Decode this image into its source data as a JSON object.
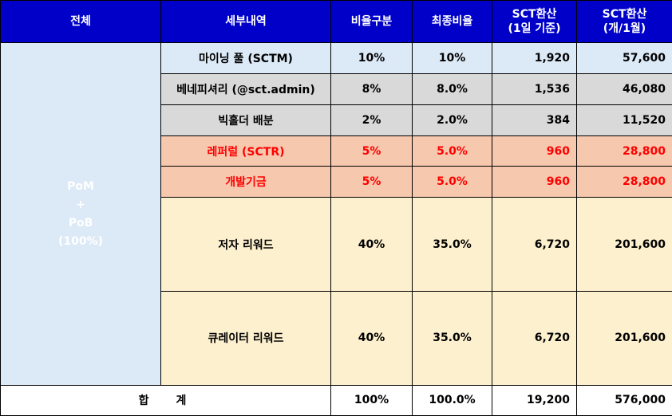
{
  "headers": {
    "total": "전체",
    "detail": "세부내역",
    "ratio": "비율구분",
    "final_ratio": "최종비율",
    "sct_day_1": "SCT환산",
    "sct_day_2": "(1일 기준)",
    "sct_month_1": "SCT환산",
    "sct_month_2": "(개/1월)"
  },
  "group": {
    "line1": "PoM",
    "line2": "+",
    "line3": "PoB",
    "line4": "(100%)"
  },
  "rows": [
    {
      "detail": "마이닝 풀 (SCTM)",
      "ratio": "10%",
      "final": "10%",
      "day": "1,920",
      "month": "57,600"
    },
    {
      "detail": "베네피셔리 (@sct.admin)",
      "ratio": "8%",
      "final": "8.0%",
      "day": "1,536",
      "month": "46,080"
    },
    {
      "detail": "빅홀더 배분",
      "ratio": "2%",
      "final": "2.0%",
      "day": "384",
      "month": "11,520"
    },
    {
      "detail": "레퍼럴 (SCTR)",
      "ratio": "5%",
      "final": "5.0%",
      "day": "960",
      "month": "28,800"
    },
    {
      "detail": "개발기금",
      "ratio": "5%",
      "final": "5.0%",
      "day": "960",
      "month": "28,800"
    },
    {
      "detail": "저자 리워드",
      "ratio": "40%",
      "final": "35.0%",
      "day": "6,720",
      "month": "201,600"
    },
    {
      "detail": "큐레이터 리워드",
      "ratio": "40%",
      "final": "35.0%",
      "day": "6,720",
      "month": "201,600"
    }
  ],
  "total": {
    "label": "합계",
    "ratio": "100%",
    "final": "100.0%",
    "day": "19,200",
    "month": "576,000"
  },
  "colors": {
    "header_bg": "#0000c8",
    "mining_bg": "#dce9f6",
    "gray_bg": "#d9d9d9",
    "salmon_bg": "#f6c8ae",
    "cream_bg": "#fdf0ce",
    "highlight_text": "#ff0000"
  }
}
